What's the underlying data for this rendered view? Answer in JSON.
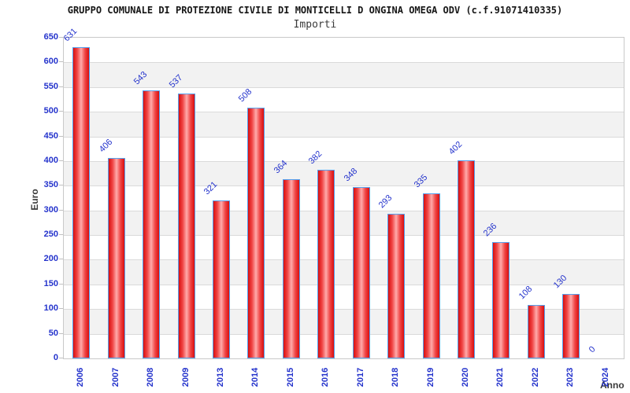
{
  "chart_data": {
    "type": "bar",
    "title": "GRUPPO COMUNALE DI PROTEZIONE CIVILE DI MONTICELLI D ONGINA OMEGA ODV (c.f.91071410335)",
    "subtitle": "Importi",
    "xlabel": "Anno",
    "ylabel": "Euro",
    "categories": [
      "2006",
      "2007",
      "2008",
      "2009",
      "2013",
      "2014",
      "2015",
      "2016",
      "2017",
      "2018",
      "2019",
      "2020",
      "2021",
      "2022",
      "2023",
      "2024"
    ],
    "values": [
      631,
      406,
      543,
      537,
      321,
      508,
      364,
      382,
      348,
      293,
      335,
      402,
      236,
      108,
      130,
      0
    ],
    "ylim": [
      0,
      650
    ],
    "ytick_step": 50,
    "grid": true,
    "legend_position": "none",
    "bar_value_labels_rotated_deg": -45,
    "colors": {
      "bar_edge": "#d90f0f",
      "bar_bright": "#f04545",
      "bar_center": "#ffabab",
      "bar_border": "#55a0ee",
      "label_blue": "#2433cc",
      "band_gray": "#f2f2f2",
      "gridline": "#dadada",
      "plot_border": "#c9c9c9",
      "text_dark": "#3a3a3a"
    }
  }
}
